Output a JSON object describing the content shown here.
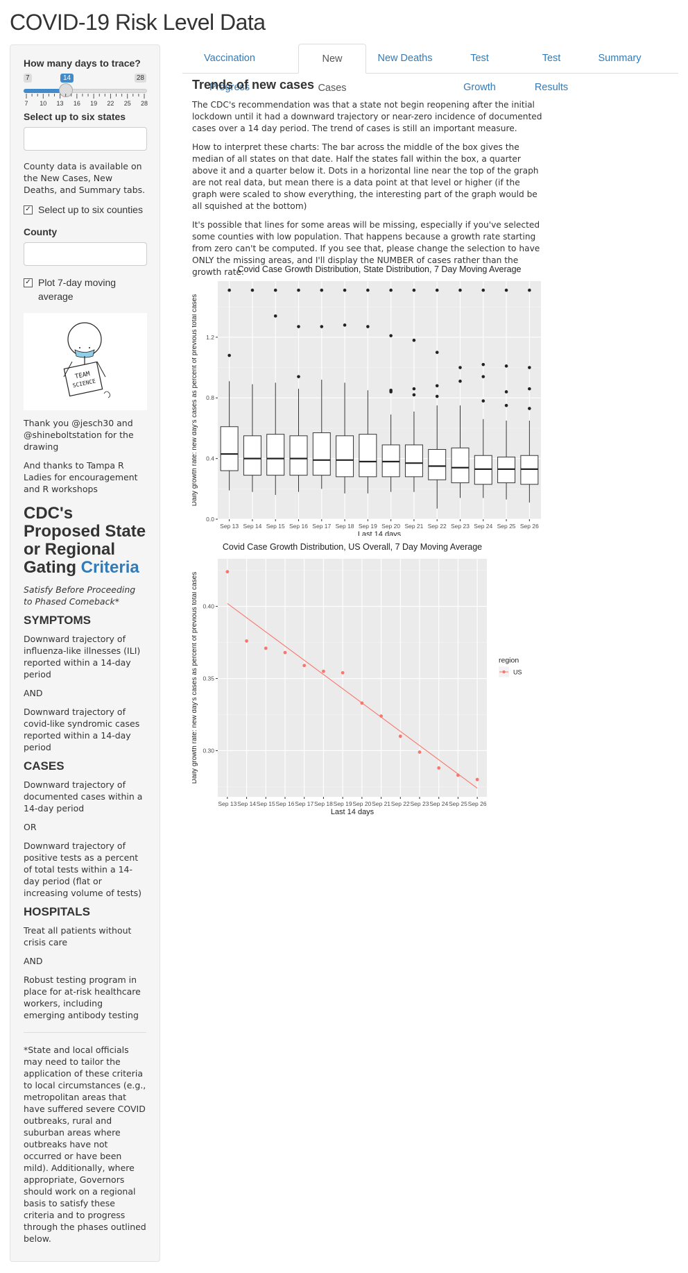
{
  "app": {
    "title": "COVID-19 Risk Level Data"
  },
  "sidebar": {
    "days_label": "How many days to trace?",
    "slider": {
      "min_label": "7",
      "max_label": "28",
      "value": 14,
      "value_label": "14",
      "min": 7,
      "max": 28,
      "ticks": [
        "7",
        "10",
        "13",
        "16",
        "19",
        "22",
        "25",
        "28"
      ]
    },
    "states_label": "Select up to six states",
    "states_value": "",
    "county_note": "County data is available on the New Cases, New Deaths, and Summary tabs.",
    "counties_checkbox": {
      "label": "Select up to six counties",
      "checked": true
    },
    "county_label": "County",
    "county_value": "",
    "moving_avg_checkbox": {
      "label": "Plot 7-day moving average",
      "checked": true
    },
    "drawing_sign": [
      "TEAM",
      "SCIENCE"
    ],
    "thanks_1": "Thank you @jesch30 and @shineboltstation for the drawing",
    "thanks_2": "And thanks to Tampa R Ladies for encouragement and R workshops",
    "gating_title_main": "CDC's Proposed State or Regional Gating",
    "gating_title_link": "Criteria",
    "gating_subtitle": "Satisfy Before Proceeding to Phased Comeback*",
    "sections": [
      {
        "heading": "SYMPTOMS",
        "items": [
          "Downward trajectory of influenza-like illnesses (ILI) reported within a 14-day period",
          "AND",
          "Downward trajectory of covid-like syndromic cases reported within a 14-day period"
        ]
      },
      {
        "heading": "CASES",
        "items": [
          "Downward trajectory of documented cases within a 14-day period",
          "OR",
          "Downward trajectory of positive tests as a percent of total tests within a 14-day period (flat or increasing volume of tests)"
        ]
      },
      {
        "heading": "HOSPITALS",
        "items": [
          "Treat all patients without crisis care",
          "AND",
          "Robust testing program in place for at-risk healthcare workers, including emerging antibody testing"
        ]
      }
    ],
    "footnote": "*State and local officials may need to tailor the application of these criteria to local circumstances (e.g., metropolitan areas that have suffered severe COVID outbreaks, rural and suburban areas where outbreaks have not occurred or have been mild). Additionally, where appropriate, Governors should work on a regional basis to satisfy these criteria and to progress through the phases outlined below."
  },
  "tabs": [
    {
      "label": "Vaccination Progress",
      "active": false
    },
    {
      "label": "New Cases",
      "active": true
    },
    {
      "label": "New Deaths",
      "active": false
    },
    {
      "label": "Test Growth",
      "active": false
    },
    {
      "label": "Test Results",
      "active": false
    },
    {
      "label": "Summary",
      "active": false
    }
  ],
  "main": {
    "heading": "Trends of new cases",
    "paragraphs": [
      "The CDC's recommendation was that a state not begin reopening after the initial lockdown until it had a downward trajectory or near-zero incidence of documented cases over a 14 day period. The trend of cases is still an important measure.",
      "How to interpret these charts: The bar across the middle of the box gives the median of all states on that date. Half the states fall within the box, a quarter above it and a quarter below it. Dots in a horizontal line near the top of the graph are not real data, but mean there is a data point at that level or higher (if the graph were scaled to show everything, the interesting part of the graph would be all squished at the bottom)",
      "It's possible that lines for some areas will be missing, especially if you've selected some counties with low population. That happens because a growth rate starting from zero can't be computed. If you see that, please change the selection to have ONLY the missing areas, and I'll display the NUMBER of cases rather than the growth rate."
    ]
  },
  "chart_data": [
    {
      "type": "box",
      "title": "Covid Case Growth Distribution, State Distribution, 7 Day Moving Average",
      "xlabel": "Last 14 days",
      "ylabel": "Daily growth rate: new day's cases as percent of previous total cases",
      "categories": [
        "Sep 13",
        "Sep 14",
        "Sep 15",
        "Sep 16",
        "Sep 17",
        "Sep 18",
        "Sep 19",
        "Sep 20",
        "Sep 21",
        "Sep 22",
        "Sep 23",
        "Sep 24",
        "Sep 25",
        "Sep 26"
      ],
      "ylim": [
        0,
        1.57
      ],
      "yticks": [
        0.0,
        0.4,
        0.8,
        1.2
      ],
      "ytick_labels": [
        "0.0",
        "0.4",
        "0.8",
        "1.2"
      ],
      "grid": true,
      "boxes": [
        {
          "low": 0.19,
          "q1": 0.32,
          "median": 0.43,
          "q3": 0.61,
          "high": 0.91,
          "outliers": [
            1.08,
            1.51
          ]
        },
        {
          "low": 0.18,
          "q1": 0.29,
          "median": 0.4,
          "q3": 0.55,
          "high": 0.89,
          "outliers": [
            1.51
          ]
        },
        {
          "low": 0.16,
          "q1": 0.29,
          "median": 0.4,
          "q3": 0.56,
          "high": 0.9,
          "outliers": [
            1.34,
            1.51
          ]
        },
        {
          "low": 0.18,
          "q1": 0.29,
          "median": 0.4,
          "q3": 0.55,
          "high": 0.86,
          "outliers": [
            0.94,
            1.27,
            1.51
          ]
        },
        {
          "low": 0.2,
          "q1": 0.29,
          "median": 0.39,
          "q3": 0.57,
          "high": 0.92,
          "outliers": [
            1.27,
            1.51
          ]
        },
        {
          "low": 0.17,
          "q1": 0.28,
          "median": 0.39,
          "q3": 0.55,
          "high": 0.9,
          "outliers": [
            1.28,
            1.51
          ]
        },
        {
          "low": 0.17,
          "q1": 0.28,
          "median": 0.38,
          "q3": 0.56,
          "high": 0.85,
          "outliers": [
            1.27,
            1.51
          ]
        },
        {
          "low": 0.18,
          "q1": 0.28,
          "median": 0.38,
          "q3": 0.49,
          "high": 0.69,
          "outliers": [
            0.84,
            0.85,
            1.21,
            1.51
          ]
        },
        {
          "low": 0.18,
          "q1": 0.28,
          "median": 0.37,
          "q3": 0.49,
          "high": 0.71,
          "outliers": [
            0.82,
            0.86,
            1.18,
            1.51
          ]
        },
        {
          "low": 0.07,
          "q1": 0.26,
          "median": 0.35,
          "q3": 0.46,
          "high": 0.75,
          "outliers": [
            0.81,
            0.88,
            1.1,
            1.51
          ]
        },
        {
          "low": 0.14,
          "q1": 0.24,
          "median": 0.34,
          "q3": 0.47,
          "high": 0.75,
          "outliers": [
            0.91,
            1.0,
            1.51
          ]
        },
        {
          "low": 0.14,
          "q1": 0.23,
          "median": 0.33,
          "q3": 0.42,
          "high": 0.66,
          "outliers": [
            0.78,
            0.94,
            1.02,
            1.51
          ]
        },
        {
          "low": 0.13,
          "q1": 0.24,
          "median": 0.33,
          "q3": 0.41,
          "high": 0.65,
          "outliers": [
            0.75,
            0.84,
            1.01,
            1.51
          ]
        },
        {
          "low": 0.11,
          "q1": 0.23,
          "median": 0.33,
          "q3": 0.42,
          "high": 0.65,
          "outliers": [
            0.73,
            0.86,
            1.0,
            1.51
          ]
        }
      ]
    },
    {
      "type": "scatter",
      "title": "Covid Case Growth Distribution, US Overall, 7 Day Moving Average",
      "xlabel": "Last 14 days",
      "ylabel": "Daily growth rate: new day's cases as percent of previous total cases",
      "categories": [
        "Sep 13",
        "Sep 14",
        "Sep 15",
        "Sep 16",
        "Sep 17",
        "Sep 18",
        "Sep 19",
        "Sep 20",
        "Sep 21",
        "Sep 22",
        "Sep 23",
        "Sep 24",
        "Sep 25",
        "Sep 26"
      ],
      "ylim": [
        0.268,
        0.433
      ],
      "yticks": [
        0.3,
        0.35,
        0.4
      ],
      "ytick_labels": [
        "0.30",
        "0.35",
        "0.40"
      ],
      "grid": true,
      "color": "#f8766d",
      "legend": {
        "title": "region",
        "position": "right"
      },
      "series": [
        {
          "name": "US",
          "values": [
            0.424,
            0.376,
            0.371,
            0.368,
            0.359,
            0.355,
            0.354,
            0.333,
            0.324,
            0.31,
            0.299,
            0.288,
            0.283,
            0.28
          ]
        }
      ],
      "trend": {
        "start": 0.402,
        "end": 0.274
      }
    }
  ]
}
